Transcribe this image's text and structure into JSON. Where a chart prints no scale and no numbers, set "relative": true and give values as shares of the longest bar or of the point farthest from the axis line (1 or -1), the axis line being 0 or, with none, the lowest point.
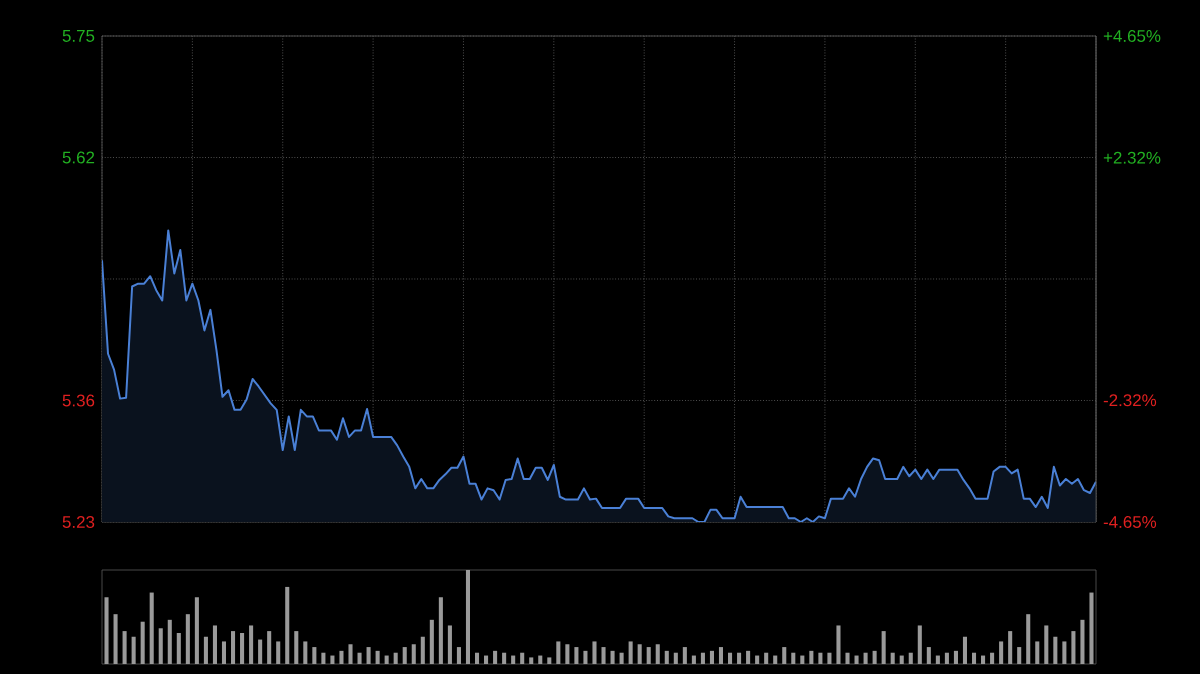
{
  "chart_data": [
    {
      "type": "area",
      "color": "#4a80d6",
      "grid": true,
      "tick_labels": "y",
      "categories": [
        null,
        null,
        null,
        null,
        null,
        null,
        null,
        null,
        null,
        null,
        null,
        null,
        null,
        null,
        null,
        null,
        null,
        null,
        null,
        null,
        null,
        null,
        null,
        null,
        null,
        null,
        null,
        null,
        null,
        null,
        null,
        null,
        null,
        null,
        null,
        null,
        null,
        null,
        null,
        null,
        null,
        null,
        null,
        null,
        null,
        null,
        null,
        null,
        null,
        null,
        null,
        null,
        null,
        null,
        null,
        null,
        null,
        null,
        null,
        null,
        null,
        null,
        null,
        null,
        null,
        null,
        null,
        null,
        null,
        null,
        null,
        null,
        null,
        null,
        null,
        null,
        null,
        null,
        null,
        null,
        null,
        null,
        null,
        null,
        null,
        null,
        null,
        null,
        null,
        null,
        null,
        null,
        null,
        null,
        null,
        null,
        null,
        null,
        null,
        null,
        null,
        null,
        null,
        null,
        null,
        null,
        null,
        null,
        null,
        null,
        null,
        null,
        null,
        null,
        null,
        null,
        null,
        null,
        null,
        null,
        null,
        null,
        null,
        null,
        null,
        null,
        null,
        null,
        null,
        null,
        null,
        null,
        null,
        null,
        null,
        null,
        null,
        null,
        null,
        null,
        null,
        null,
        null,
        null,
        null,
        null,
        null,
        null,
        null,
        null,
        null,
        null,
        null,
        null,
        null,
        null,
        null,
        null,
        null,
        null,
        null,
        null,
        null,
        null,
        null,
        null
      ],
      "ylim": [
        5.23,
        5.75
      ],
      "yticks": [
        5.23,
        5.36,
        {
          "value": 5.49,
          "label": null
        },
        5.62,
        5.75
      ],
      "y2lim": [
        -4.65,
        4.65
      ],
      "y2ticks": [
        {
          "value": -4.65,
          "label": "-4.65%"
        },
        {
          "value": -2.32,
          "label": "-2.32%"
        },
        {
          "value": 0,
          "label": null
        },
        {
          "value": 2.32,
          "label": "+2.32%"
        },
        {
          "value": 4.65,
          "label": "+4.65%"
        }
      ],
      "values": [
        5.51,
        5.41,
        5.393,
        5.362,
        5.363,
        5.482,
        5.485,
        5.485,
        5.493,
        5.478,
        5.467,
        5.542,
        5.496,
        5.521,
        5.467,
        5.485,
        5.467,
        5.435,
        5.457,
        5.414,
        5.364,
        5.371,
        5.35,
        5.35,
        5.361,
        5.383,
        5.375,
        5.366,
        5.357,
        5.35,
        5.307,
        5.343,
        5.307,
        5.35,
        5.343,
        5.343,
        5.328,
        5.328,
        5.328,
        5.318,
        5.341,
        5.321,
        5.328,
        5.328,
        5.351,
        5.321,
        5.321,
        5.321,
        5.321,
        5.312,
        5.3,
        5.289,
        5.266,
        5.276,
        5.266,
        5.266,
        5.275,
        5.281,
        5.288,
        5.288,
        5.3,
        5.271,
        5.271,
        5.254,
        5.266,
        5.264,
        5.254,
        5.275,
        5.276,
        5.298,
        5.276,
        5.276,
        5.288,
        5.288,
        5.275,
        5.291,
        5.257,
        5.254,
        5.254,
        5.254,
        5.266,
        5.254,
        5.255,
        5.245,
        5.245,
        5.245,
        5.245,
        5.255,
        5.255,
        5.255,
        5.245,
        5.245,
        5.245,
        5.245,
        5.236,
        5.234,
        5.234,
        5.234,
        5.234,
        5.23,
        5.23,
        5.243,
        5.243,
        5.234,
        5.234,
        5.234,
        5.257,
        5.246,
        5.246,
        5.246,
        5.246,
        5.246,
        5.246,
        5.246,
        5.234,
        5.234,
        5.23,
        5.234,
        5.23,
        5.236,
        5.234,
        5.255,
        5.255,
        5.255,
        5.266,
        5.257,
        5.276,
        5.289,
        5.298,
        5.296,
        5.276,
        5.276,
        5.276,
        5.289,
        5.279,
        5.286,
        5.276,
        5.286,
        5.276,
        5.286,
        5.286,
        5.286,
        5.286,
        5.275,
        5.266,
        5.255,
        5.255,
        5.255,
        5.284,
        5.289,
        5.289,
        5.282,
        5.286,
        5.255,
        5.255,
        5.246,
        5.257,
        5.245,
        5.289,
        5.269,
        5.276,
        5.271,
        5.276,
        5.264,
        5.261,
        5.273
      ]
    },
    {
      "type": "bar",
      "color": "#9a9a9a",
      "relative": true,
      "tick_labels": false,
      "categories": [
        null,
        null,
        null,
        null,
        null,
        null,
        null,
        null,
        null,
        null,
        null,
        null,
        null,
        null,
        null,
        null,
        null,
        null,
        null,
        null,
        null,
        null,
        null,
        null,
        null,
        null,
        null,
        null,
        null,
        null,
        null,
        null,
        null,
        null,
        null,
        null,
        null,
        null,
        null,
        null,
        null,
        null,
        null,
        null,
        null,
        null,
        null,
        null,
        null,
        null,
        null,
        null,
        null,
        null,
        null,
        null,
        null,
        null,
        null,
        null,
        null,
        null,
        null,
        null,
        null,
        null,
        null,
        null,
        null,
        null,
        null,
        null,
        null,
        null,
        null,
        null,
        null,
        null,
        null,
        null,
        null,
        null,
        null,
        null,
        null,
        null,
        null,
        null,
        null,
        null,
        null,
        null,
        null,
        null,
        null,
        null,
        null,
        null,
        null,
        null,
        null,
        null,
        null,
        null,
        null,
        null,
        null,
        null,
        null,
        null
      ],
      "values": [
        0.71,
        0.53,
        0.35,
        0.29,
        0.45,
        0.76,
        0.38,
        0.47,
        0.33,
        0.53,
        0.71,
        0.29,
        0.41,
        0.24,
        0.35,
        0.33,
        0.41,
        0.26,
        0.35,
        0.24,
        0.82,
        0.35,
        0.24,
        0.18,
        0.12,
        0.09,
        0.14,
        0.21,
        0.12,
        0.18,
        0.14,
        0.09,
        0.12,
        0.18,
        0.21,
        0.29,
        0.47,
        0.71,
        0.41,
        0.18,
        1,
        0.12,
        0.09,
        0.14,
        0.12,
        0.09,
        0.12,
        0.07,
        0.09,
        0.07,
        0.24,
        0.21,
        0.18,
        0.14,
        0.24,
        0.18,
        0.14,
        0.12,
        0.24,
        0.21,
        0.18,
        0.21,
        0.14,
        0.12,
        0.18,
        0.09,
        0.12,
        0.14,
        0.18,
        0.12,
        0.12,
        0.14,
        0.09,
        0.12,
        0.09,
        0.18,
        0.12,
        0.09,
        0.14,
        0.12,
        0.12,
        0.41,
        0.12,
        0.09,
        0.12,
        0.14,
        0.35,
        0.12,
        0.09,
        0.12,
        0.41,
        0.18,
        0.09,
        0.12,
        0.14,
        0.29,
        0.12,
        0.09,
        0.12,
        0.24,
        0.35,
        0.18,
        0.53,
        0.24,
        0.41,
        0.29,
        0.24,
        0.35,
        0.47,
        0.76
      ]
    }
  ]
}
